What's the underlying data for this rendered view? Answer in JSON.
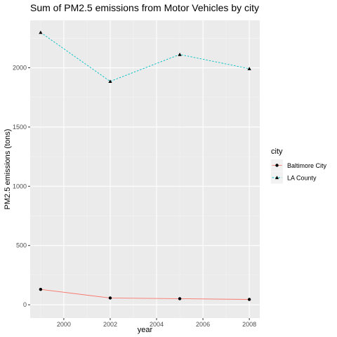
{
  "chart_data": {
    "type": "line",
    "title": "Sum of PM2.5 emissions from Motor Vehicles by city",
    "xlabel": "year",
    "ylabel": "PM2.5 emissions (tons)",
    "xlim": [
      1998.55,
      2008.45
    ],
    "ylim": [
      -112,
      2400
    ],
    "x_ticks": [
      2000,
      2002,
      2004,
      2006,
      2008
    ],
    "y_ticks": [
      0,
      500,
      1000,
      1500,
      2000
    ],
    "grid": true,
    "background": "#ebebeb",
    "legend": {
      "title": "city",
      "placement": "right"
    },
    "series": [
      {
        "name": "Baltimore City",
        "x": [
          1999,
          2002,
          2005,
          2008
        ],
        "y": [
          130,
          57,
          51,
          45
        ],
        "color": "#f8766d",
        "line": "solid",
        "marker": "circle"
      },
      {
        "name": "LA County",
        "x": [
          1999,
          2002,
          2005,
          2008
        ],
        "y": [
          2298,
          1885,
          2112,
          1992
        ],
        "color": "#00bfc4",
        "line": "dashed",
        "marker": "triangle"
      }
    ]
  }
}
